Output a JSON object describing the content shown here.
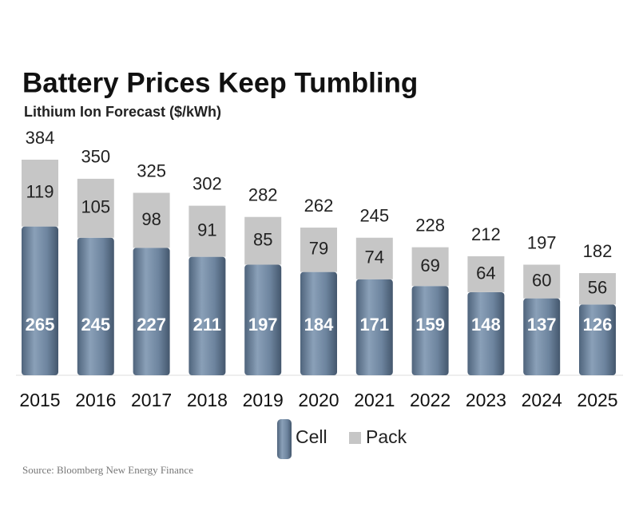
{
  "chart_data": {
    "type": "stacked_bar",
    "title": "Battery Prices Keep Tumbling",
    "subtitle": "Lithium Ion Forecast ($/kWh)",
    "categories": [
      "2015",
      "2016",
      "2017",
      "2018",
      "2019",
      "2020",
      "2021",
      "2022",
      "2023",
      "2024",
      "2025"
    ],
    "series": [
      {
        "name": "Cell",
        "color": "#6d849e",
        "values": [
          265,
          245,
          227,
          211,
          197,
          184,
          171,
          159,
          148,
          137,
          126
        ]
      },
      {
        "name": "Pack",
        "color": "#c6c6c6",
        "values": [
          119,
          105,
          98,
          91,
          85,
          79,
          74,
          69,
          64,
          60,
          56
        ]
      }
    ],
    "totals": [
      384,
      350,
      325,
      302,
      282,
      262,
      245,
      228,
      212,
      197,
      182
    ],
    "source": "Source: Bloomberg New Energy Finance"
  }
}
